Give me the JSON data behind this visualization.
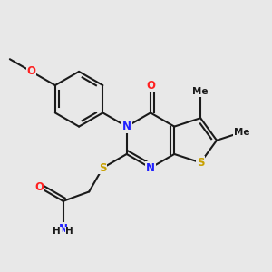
{
  "bg_color": "#e8e8e8",
  "line_color": "#1a1a1a",
  "bond_lw": 1.5,
  "dbo": 0.012,
  "atom_colors": {
    "N": "#2020ff",
    "O": "#ff2020",
    "S": "#c8a000",
    "C": "#1a1a1a",
    "H": "#1a1a1a"
  },
  "fs": 8.5,
  "fs_small": 7.5,
  "bl": 0.095
}
